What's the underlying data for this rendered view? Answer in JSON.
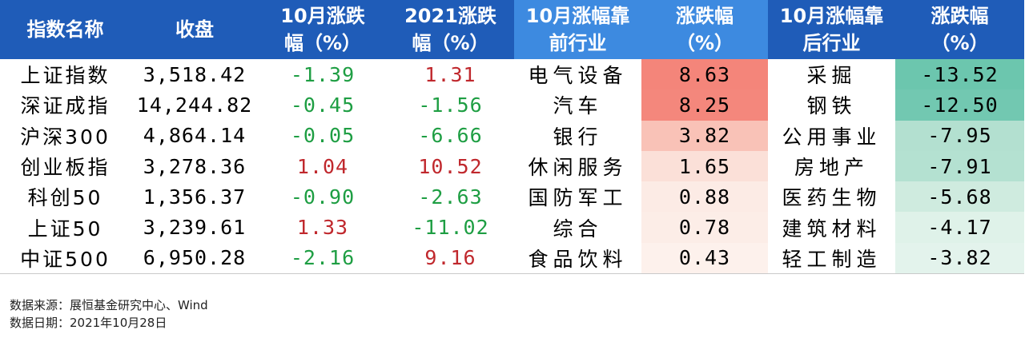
{
  "table": {
    "headers": [
      [
        "指数名称"
      ],
      [
        "收盘"
      ],
      [
        "10月涨跌",
        "幅（%）"
      ],
      [
        "2021涨跌",
        "幅（%）"
      ],
      [
        "10月涨幅靠",
        "前行业"
      ],
      [
        "涨跌幅",
        "（%）"
      ],
      [
        "10月涨幅靠",
        "后行业"
      ],
      [
        "涨跌幅",
        "（%）"
      ]
    ],
    "rows": [
      {
        "index": "上证指数",
        "close": "3,518.42",
        "oct_chg": "-1.39",
        "ytd_chg": "1.31",
        "top_ind": "电气设备",
        "top_chg": "8.63",
        "bot_ind": "采掘",
        "bot_chg": "-13.52"
      },
      {
        "index": "深证成指",
        "close": "14,244.82",
        "oct_chg": "-0.45",
        "ytd_chg": "-1.56",
        "top_ind": "汽车",
        "top_chg": "8.25",
        "bot_ind": "钢铁",
        "bot_chg": "-12.50"
      },
      {
        "index": "沪深300",
        "close": "4,864.14",
        "oct_chg": "-0.05",
        "ytd_chg": "-6.66",
        "top_ind": "银行",
        "top_chg": "3.82",
        "bot_ind": "公用事业",
        "bot_chg": "-7.95"
      },
      {
        "index": "创业板指",
        "close": "3,278.36",
        "oct_chg": "1.04",
        "ytd_chg": "10.52",
        "top_ind": "休闲服务",
        "top_chg": "1.65",
        "bot_ind": "房地产",
        "bot_chg": "-7.91"
      },
      {
        "index": "科创50",
        "close": "1,356.37",
        "oct_chg": "-0.90",
        "ytd_chg": "-2.63",
        "top_ind": "国防军工",
        "top_chg": "0.88",
        "bot_ind": "医药生物",
        "bot_chg": "-5.68"
      },
      {
        "index": "上证50",
        "close": "3,239.61",
        "oct_chg": "1.33",
        "ytd_chg": "-11.02",
        "top_ind": "综合",
        "top_chg": "0.78",
        "bot_ind": "建筑材料",
        "bot_chg": "-4.17"
      },
      {
        "index": "中证500",
        "close": "6,950.28",
        "oct_chg": "-2.16",
        "ytd_chg": "9.16",
        "top_ind": "食品饮料",
        "top_chg": "0.43",
        "bot_ind": "轻工制造",
        "bot_chg": "-3.82"
      }
    ]
  },
  "colors": {
    "header_dark": "#1f5cb8",
    "header_light": "#3d8ae0",
    "positive_text": "#c0282d",
    "negative_text": "#1e9e43",
    "top_heat": [
      "#f4857a",
      "#f4877c",
      "#f9c2b7",
      "#fbe0d8",
      "#fcebe5",
      "#fcede7",
      "#fdf1ec"
    ],
    "bottom_heat": [
      "#6cc6ae",
      "#72c8b1",
      "#b3e0d0",
      "#b4e1d1",
      "#cfebdf",
      "#dff2e9",
      "#e3f3ec"
    ]
  },
  "notes": {
    "source": "数据来源：展恒基金研究中心、Wind",
    "date": "数据日期：2021年10月28日"
  }
}
